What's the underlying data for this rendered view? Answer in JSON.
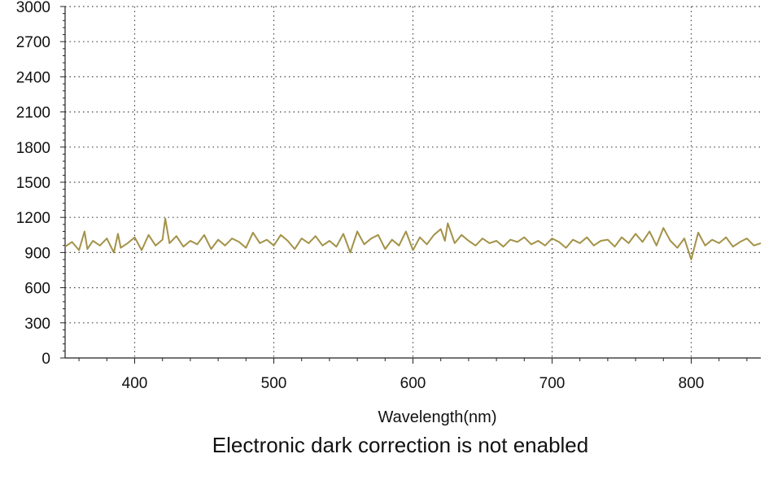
{
  "chart_data": {
    "type": "line",
    "title": "",
    "xlabel": "Wavelength(nm)",
    "ylabel": "",
    "xlim": [
      350,
      850
    ],
    "ylim": [
      0,
      3000
    ],
    "xticks": [
      400,
      500,
      600,
      700,
      800
    ],
    "yticks": [
      0,
      300,
      600,
      900,
      1200,
      1500,
      1800,
      2100,
      2400,
      2700,
      3000
    ],
    "grid": true,
    "legend": "none",
    "caption": "Electronic dark correction is not enabled",
    "series": [
      {
        "color": "#a39248",
        "x": [
          350,
          355,
          360,
          364,
          366,
          370,
          375,
          380,
          385,
          388,
          390,
          395,
          400,
          405,
          410,
          415,
          420,
          422,
          425,
          430,
          435,
          440,
          445,
          450,
          455,
          460,
          465,
          470,
          475,
          480,
          485,
          490,
          495,
          500,
          505,
          510,
          515,
          520,
          525,
          530,
          535,
          540,
          545,
          550,
          555,
          560,
          565,
          570,
          575,
          580,
          585,
          590,
          595,
          600,
          605,
          610,
          615,
          620,
          623,
          625,
          630,
          635,
          640,
          645,
          650,
          655,
          660,
          665,
          670,
          675,
          680,
          685,
          690,
          695,
          700,
          705,
          710,
          715,
          720,
          725,
          730,
          735,
          740,
          745,
          750,
          755,
          760,
          765,
          770,
          775,
          780,
          785,
          790,
          795,
          800,
          805,
          810,
          815,
          820,
          825,
          830,
          835,
          840,
          845,
          850
        ],
        "y": [
          950,
          990,
          920,
          1080,
          930,
          1000,
          960,
          1020,
          900,
          1060,
          940,
          980,
          1030,
          920,
          1050,
          960,
          1010,
          1190,
          980,
          1040,
          950,
          1000,
          970,
          1050,
          930,
          1010,
          960,
          1020,
          990,
          940,
          1070,
          980,
          1010,
          960,
          1050,
          1000,
          930,
          1020,
          980,
          1040,
          960,
          1000,
          950,
          1060,
          900,
          1080,
          970,
          1020,
          1050,
          930,
          1010,
          960,
          1080,
          920,
          1030,
          970,
          1050,
          1100,
          1000,
          1150,
          980,
          1050,
          1000,
          960,
          1020,
          980,
          1000,
          950,
          1010,
          990,
          1030,
          970,
          1000,
          960,
          1020,
          990,
          940,
          1010,
          980,
          1030,
          960,
          1000,
          1010,
          950,
          1030,
          980,
          1060,
          990,
          1080,
          960,
          1110,
          1000,
          940,
          1020,
          840,
          1070,
          960,
          1010,
          980,
          1030,
          950,
          990,
          1020,
          960,
          980
        ]
      }
    ]
  }
}
